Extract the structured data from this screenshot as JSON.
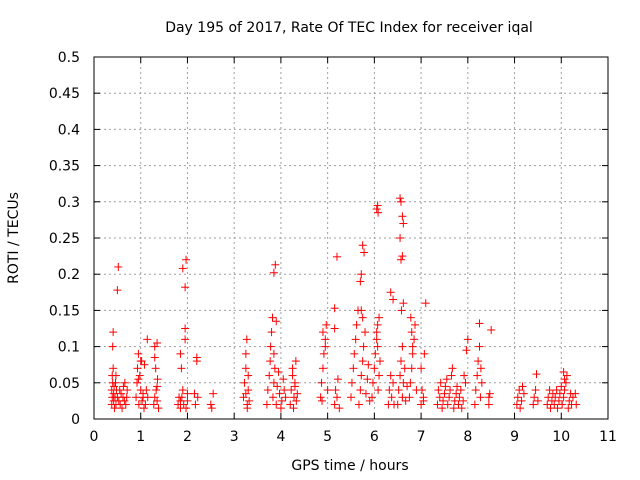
{
  "chart_data": {
    "type": "scatter",
    "title": "Day 195 of 2017, Rate Of TEC Index for receiver iqal",
    "xlabel": "GPS time / hours",
    "ylabel": "ROTI / TECUs",
    "xlim": [
      0,
      11
    ],
    "ylim": [
      0,
      0.5
    ],
    "x_ticks": [
      "0",
      "1",
      "2",
      "3",
      "4",
      "5",
      "6",
      "7",
      "8",
      "9",
      "10",
      "11"
    ],
    "y_ticks": [
      "0",
      "0.05",
      "0.1",
      "0.15",
      "0.2",
      "0.25",
      "0.3",
      "0.35",
      "0.4",
      "0.45",
      "0.5"
    ],
    "grid": true,
    "marker": "plus",
    "marker_color": "#ff0000",
    "series": [
      {
        "x": [
          0.38,
          0.38,
          0.39,
          0.39,
          0.4,
          0.4,
          0.41,
          0.41,
          0.42,
          0.42,
          0.43,
          0.44,
          0.45,
          0.46,
          0.47,
          0.47,
          0.48,
          0.5,
          0.5,
          0.52,
          0.53,
          0.55,
          0.56,
          0.58,
          0.6,
          0.62,
          0.63,
          0.65,
          0.66,
          0.68,
          0.7,
          0.71,
          0.9,
          0.92,
          0.93,
          0.95,
          0.96,
          0.98,
          1.0,
          1.02,
          1.03,
          1.05,
          1.07,
          1.08,
          1.1,
          1.12,
          1.14,
          1.15,
          0.95,
          1.0,
          1.05,
          1.28,
          1.3,
          1.3,
          1.32,
          1.33,
          1.35,
          1.35,
          1.36,
          1.38,
          1.3,
          1.35,
          1.8,
          1.82,
          1.85,
          1.85,
          1.88,
          1.9,
          1.92,
          1.95,
          1.95,
          1.97,
          2.0,
          2.0,
          1.9,
          1.95,
          1.85,
          1.87,
          1.97,
          2.15,
          2.17,
          2.2,
          2.2,
          2.22,
          2.5,
          2.52,
          2.55,
          3.2,
          3.22,
          3.25,
          3.25,
          3.27,
          3.28,
          3.3,
          3.3,
          3.32,
          3.25,
          3.28,
          3.7,
          3.72,
          3.75,
          3.77,
          3.78,
          3.8,
          3.82,
          3.83,
          3.85,
          3.87,
          3.9,
          3.92,
          3.95,
          3.97,
          4.0,
          4.02,
          4.05,
          4.07,
          4.1,
          3.85,
          3.88,
          3.9,
          3.85,
          4.2,
          4.22,
          4.25,
          4.27,
          4.28,
          4.3,
          4.32,
          4.33,
          4.35,
          4.25,
          4.3,
          4.85,
          4.87,
          4.9,
          4.92,
          4.95,
          4.97,
          5.0,
          4.9,
          4.95,
          4.88,
          5.15,
          5.17,
          5.2,
          5.22,
          5.25,
          5.15,
          5.2,
          5.15,
          5.5,
          5.52,
          5.55,
          5.57,
          5.6,
          5.62,
          5.65,
          5.67,
          5.7,
          5.72,
          5.75,
          5.77,
          5.8,
          5.82,
          5.85,
          5.87,
          5.9,
          5.72,
          5.75,
          5.78,
          5.7,
          5.72,
          5.75,
          5.95,
          5.97,
          6.0,
          6.02,
          6.05,
          6.07,
          6.08,
          6.1,
          6.12,
          6.05,
          6.07,
          6.08,
          6.1,
          6.05,
          6.07,
          6.3,
          6.32,
          6.35,
          6.37,
          6.4,
          6.42,
          6.35,
          6.4,
          6.5,
          6.52,
          6.55,
          6.57,
          6.6,
          6.62,
          6.65,
          6.67,
          6.7,
          6.55,
          6.57,
          6.6,
          6.62,
          6.55,
          6.57,
          6.6,
          6.62,
          6.58,
          6.6,
          6.75,
          6.77,
          6.8,
          6.82,
          6.85,
          6.87,
          6.9,
          6.78,
          6.8,
          6.82,
          7.0,
          7.02,
          7.05,
          7.07,
          7.1,
          7.0,
          7.05,
          7.35,
          7.37,
          7.4,
          7.42,
          7.45,
          7.47,
          7.5,
          7.52,
          7.55,
          7.57,
          7.6,
          7.62,
          7.65,
          7.67,
          7.7,
          7.72,
          7.75,
          7.77,
          7.8,
          7.82,
          7.85,
          7.87,
          7.9,
          7.92,
          7.95,
          7.97,
          8.0,
          8.15,
          8.17,
          8.2,
          8.22,
          8.25,
          8.27,
          8.3,
          8.25,
          8.28,
          8.45,
          8.47,
          8.5,
          8.45,
          9.05,
          9.07,
          9.1,
          9.12,
          9.15,
          9.17,
          9.2,
          9.4,
          9.42,
          9.45,
          9.47,
          9.5,
          9.7,
          9.72,
          9.75,
          9.77,
          9.8,
          9.82,
          9.85,
          9.87,
          9.9,
          9.92,
          9.95,
          9.97,
          10.0,
          10.02,
          10.05,
          10.07,
          10.1,
          10.12,
          10.15,
          10.17,
          10.2,
          10.22,
          10.25,
          10.3,
          10.32,
          10.05,
          10.07
        ],
        "y": [
          0.02,
          0.04,
          0.06,
          0.03,
          0.05,
          0.1,
          0.12,
          0.07,
          0.025,
          0.035,
          0.045,
          0.015,
          0.03,
          0.05,
          0.02,
          0.06,
          0.04,
          0.03,
          0.178,
          0.21,
          0.025,
          0.04,
          0.02,
          0.035,
          0.015,
          0.03,
          0.045,
          0.025,
          0.05,
          0.02,
          0.03,
          0.04,
          0.03,
          0.05,
          0.07,
          0.09,
          0.02,
          0.06,
          0.04,
          0.08,
          0.025,
          0.03,
          0.015,
          0.075,
          0.02,
          0.04,
          0.11,
          0.03,
          0.055,
          0.08,
          0.035,
          0.02,
          0.03,
          0.1,
          0.07,
          0.04,
          0.025,
          0.105,
          0.055,
          0.015,
          0.085,
          0.045,
          0.02,
          0.03,
          0.015,
          0.025,
          0.03,
          0.04,
          0.02,
          0.125,
          0.11,
          0.015,
          0.025,
          0.035,
          0.208,
          0.182,
          0.09,
          0.07,
          0.22,
          0.035,
          0.02,
          0.085,
          0.08,
          0.03,
          0.02,
          0.015,
          0.035,
          0.03,
          0.05,
          0.07,
          0.09,
          0.11,
          0.02,
          0.04,
          0.06,
          0.025,
          0.035,
          0.015,
          0.02,
          0.04,
          0.06,
          0.08,
          0.1,
          0.12,
          0.14,
          0.03,
          0.05,
          0.07,
          0.02,
          0.045,
          0.065,
          0.035,
          0.015,
          0.025,
          0.055,
          0.04,
          0.03,
          0.202,
          0.213,
          0.135,
          0.09,
          0.02,
          0.04,
          0.06,
          0.015,
          0.03,
          0.05,
          0.08,
          0.025,
          0.035,
          0.07,
          0.045,
          0.03,
          0.05,
          0.07,
          0.09,
          0.11,
          0.13,
          0.04,
          0.12,
          0.1,
          0.025,
          0.02,
          0.04,
          0.03,
          0.055,
          0.015,
          0.153,
          0.224,
          0.125,
          0.03,
          0.05,
          0.07,
          0.09,
          0.11,
          0.13,
          0.15,
          0.02,
          0.04,
          0.06,
          0.08,
          0.1,
          0.12,
          0.035,
          0.055,
          0.075,
          0.025,
          0.2,
          0.24,
          0.23,
          0.19,
          0.15,
          0.14,
          0.03,
          0.05,
          0.07,
          0.09,
          0.11,
          0.13,
          0.04,
          0.06,
          0.08,
          0.29,
          0.295,
          0.285,
          0.14,
          0.12,
          0.1,
          0.02,
          0.04,
          0.06,
          0.03,
          0.05,
          0.02,
          0.175,
          0.165,
          0.02,
          0.04,
          0.06,
          0.08,
          0.03,
          0.05,
          0.07,
          0.025,
          0.045,
          0.305,
          0.3,
          0.28,
          0.27,
          0.25,
          0.22,
          0.225,
          0.16,
          0.15,
          0.1,
          0.03,
          0.05,
          0.07,
          0.09,
          0.11,
          0.13,
          0.04,
          0.14,
          0.12,
          0.1,
          0.02,
          0.04,
          0.03,
          0.09,
          0.16,
          0.07,
          0.025,
          0.02,
          0.04,
          0.03,
          0.05,
          0.015,
          0.025,
          0.035,
          0.045,
          0.055,
          0.02,
          0.03,
          0.04,
          0.06,
          0.07,
          0.015,
          0.025,
          0.035,
          0.045,
          0.02,
          0.03,
          0.04,
          0.015,
          0.025,
          0.06,
          0.05,
          0.095,
          0.11,
          0.02,
          0.04,
          0.06,
          0.08,
          0.1,
          0.03,
          0.05,
          0.132,
          0.07,
          0.02,
          0.035,
          0.123,
          0.03,
          0.02,
          0.03,
          0.04,
          0.015,
          0.025,
          0.045,
          0.035,
          0.02,
          0.03,
          0.04,
          0.062,
          0.025,
          0.02,
          0.03,
          0.04,
          0.015,
          0.025,
          0.035,
          0.02,
          0.03,
          0.04,
          0.015,
          0.025,
          0.035,
          0.045,
          0.02,
          0.03,
          0.04,
          0.05,
          0.06,
          0.015,
          0.025,
          0.035,
          0.02,
          0.03,
          0.035,
          0.02,
          0.065,
          0.055
        ]
      }
    ]
  }
}
